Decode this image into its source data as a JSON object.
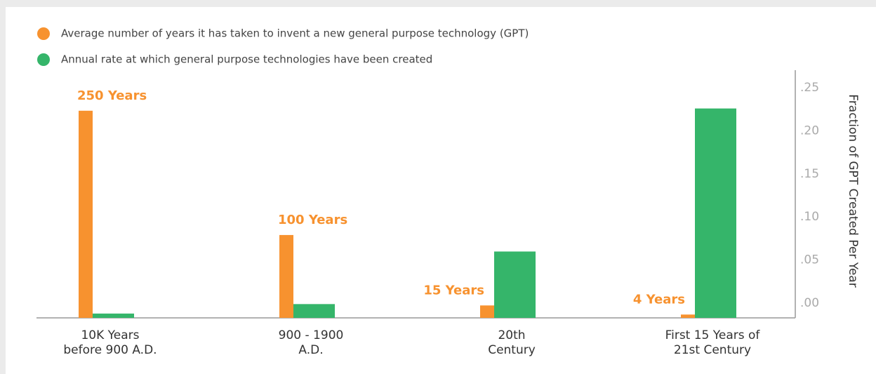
{
  "chart_data": {
    "type": "bar",
    "categories": [
      "10K Years\nbefore 900 A.D.",
      "900 - 1900\nA.D.",
      "20th\nCentury",
      "First 15 Years of\n21st Century"
    ],
    "series": [
      {
        "name": "Average number of years it has taken to invent a new general purpose technology (GPT)",
        "color": "#f7922f",
        "axis": "y",
        "values": [
          250,
          100,
          15,
          4
        ],
        "value_labels": [
          "250 Years",
          "100 Years",
          "15 Years",
          "4 Years"
        ]
      },
      {
        "name": "Annual rate at which general purpose technologies have been created",
        "color": "#35b56a",
        "axis": "y2",
        "values": [
          0.005,
          0.016,
          0.077,
          0.243
        ]
      }
    ],
    "ylim": [
      0,
      260
    ],
    "y2lim": [
      0,
      0.25
    ],
    "y2ticks": [
      {
        "value": 0,
        "label": ".00"
      },
      {
        "value": 0.05,
        "label": ".05"
      },
      {
        "value": 0.1,
        "label": ".10"
      },
      {
        "value": 0.15,
        "label": ".15"
      },
      {
        "value": 0.2,
        "label": ".20"
      },
      {
        "value": 0.25,
        "label": ".25"
      }
    ],
    "y2label": "Fraction of GPT Created Per Year",
    "legend": "top-left"
  }
}
